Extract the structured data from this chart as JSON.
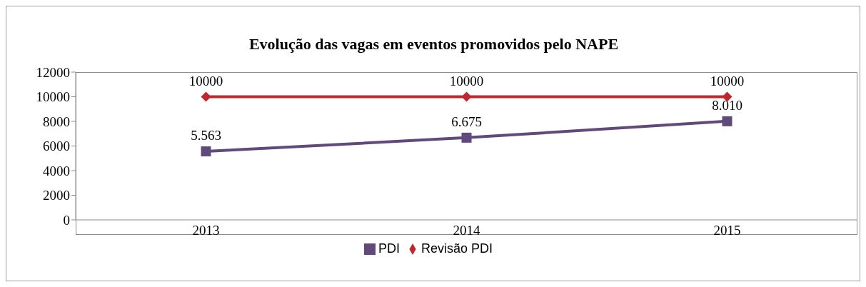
{
  "chart_data": {
    "type": "line",
    "title": "Evolução das vagas em eventos promovidos pelo NAPE",
    "categories": [
      "2013",
      "2014",
      "2015"
    ],
    "series": [
      {
        "name": "Revisão PDI",
        "color": "#c0272d",
        "marker": "diamond",
        "values": [
          10000,
          10000,
          10000
        ],
        "value_labels": [
          "10000",
          "10000",
          "10000"
        ]
      },
      {
        "name": "PDI",
        "color": "#604a7b",
        "marker": "square",
        "values": [
          5563,
          6675,
          8010
        ],
        "value_labels": [
          "5.563",
          "6.675",
          "8.010"
        ]
      }
    ],
    "ylim": [
      0,
      12000
    ],
    "yticks": [
      0,
      2000,
      4000,
      6000,
      8000,
      10000,
      12000
    ],
    "grid": false,
    "legend": "bottom",
    "line_style": "solid"
  }
}
